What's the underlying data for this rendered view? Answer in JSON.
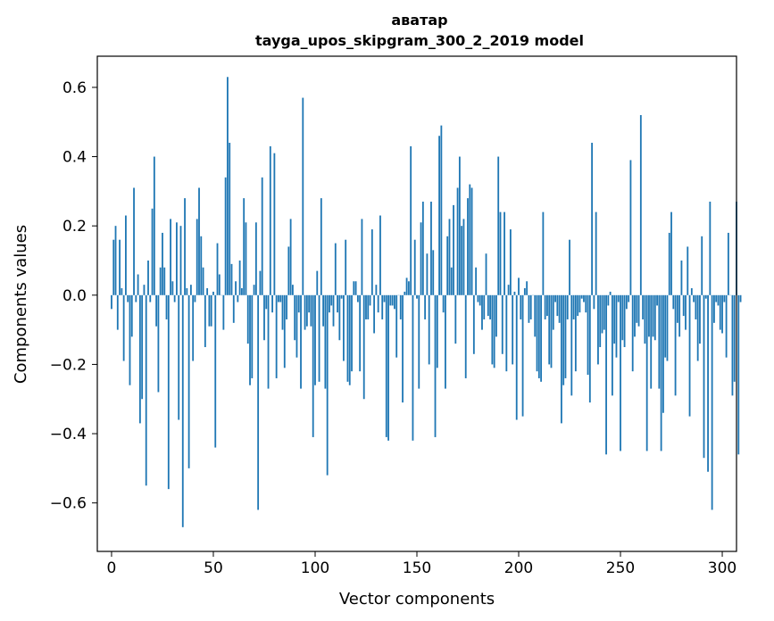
{
  "chart_data": {
    "type": "bar",
    "title": [
      "аватар",
      "tayga_upos_skipgram_300_2_2019 model"
    ],
    "xlabel": "Vector components",
    "ylabel": "Components values",
    "xlim": [
      -7,
      307
    ],
    "ylim": [
      -0.74,
      0.69
    ],
    "xticks": [
      0,
      50,
      100,
      150,
      200,
      250,
      300
    ],
    "yticks": [
      -0.6,
      -0.4,
      -0.2,
      0.0,
      0.2,
      0.4,
      0.6
    ],
    "ytick_labels": [
      "−0.6",
      "−0.4",
      "−0.2",
      "0.0",
      "0.2",
      "0.4",
      "0.6"
    ],
    "bar_color": "#1f77b4",
    "grid": false,
    "values": [
      -0.04,
      0.16,
      0.2,
      -0.1,
      0.16,
      0.02,
      -0.19,
      0.23,
      -0.02,
      -0.26,
      -0.12,
      0.31,
      -0.02,
      0.06,
      -0.37,
      -0.3,
      0.03,
      -0.55,
      0.1,
      -0.02,
      0.25,
      0.4,
      -0.09,
      -0.28,
      0.08,
      0.18,
      0.08,
      -0.07,
      -0.56,
      0.22,
      0.04,
      -0.02,
      0.21,
      -0.36,
      0.2,
      -0.67,
      0.28,
      0.02,
      -0.5,
      0.03,
      -0.19,
      -0.02,
      0.22,
      0.31,
      0.17,
      0.08,
      -0.15,
      0.02,
      -0.09,
      -0.09,
      0.01,
      -0.44,
      0.15,
      0.06,
      0.0,
      -0.1,
      0.34,
      0.63,
      0.44,
      0.09,
      -0.08,
      0.04,
      -0.02,
      0.1,
      0.02,
      0.28,
      0.21,
      -0.14,
      -0.26,
      -0.24,
      0.03,
      0.21,
      -0.62,
      0.07,
      0.34,
      -0.13,
      -0.04,
      -0.27,
      0.43,
      -0.05,
      0.41,
      -0.24,
      -0.02,
      -0.02,
      -0.1,
      -0.21,
      -0.07,
      0.14,
      0.22,
      0.03,
      -0.13,
      -0.18,
      -0.05,
      -0.27,
      0.57,
      -0.1,
      -0.09,
      -0.05,
      -0.09,
      -0.41,
      -0.26,
      0.07,
      -0.25,
      0.28,
      -0.09,
      -0.27,
      -0.52,
      -0.05,
      -0.03,
      -0.09,
      0.15,
      -0.05,
      -0.13,
      -0.01,
      -0.19,
      0.16,
      -0.25,
      -0.26,
      -0.22,
      0.04,
      0.04,
      -0.02,
      -0.22,
      0.22,
      -0.3,
      -0.07,
      -0.07,
      -0.03,
      0.19,
      -0.11,
      0.03,
      -0.05,
      0.23,
      -0.07,
      -0.02,
      -0.41,
      -0.42,
      -0.03,
      -0.03,
      -0.04,
      -0.18,
      0.0,
      -0.07,
      -0.31,
      0.01,
      0.05,
      0.04,
      0.43,
      -0.42,
      0.16,
      -0.01,
      -0.27,
      0.21,
      0.27,
      -0.07,
      0.12,
      -0.2,
      0.27,
      0.13,
      -0.41,
      -0.21,
      0.46,
      0.49,
      -0.05,
      -0.27,
      0.17,
      0.22,
      0.08,
      0.26,
      -0.14,
      0.31,
      0.4,
      0.2,
      0.22,
      -0.24,
      0.28,
      0.32,
      0.31,
      -0.17,
      0.08,
      -0.02,
      -0.03,
      -0.1,
      -0.07,
      0.12,
      -0.06,
      -0.07,
      -0.2,
      -0.21,
      -0.12,
      0.4,
      0.24,
      -0.17,
      0.24,
      -0.22,
      0.03,
      0.19,
      -0.2,
      0.01,
      -0.36,
      0.05,
      -0.07,
      -0.35,
      0.02,
      0.04,
      -0.08,
      -0.07,
      0.0,
      -0.12,
      -0.22,
      -0.24,
      -0.25,
      0.24,
      -0.07,
      -0.06,
      -0.2,
      -0.21,
      -0.1,
      -0.02,
      -0.06,
      -0.08,
      -0.37,
      -0.26,
      -0.24,
      -0.07,
      0.16,
      -0.29,
      -0.07,
      -0.22,
      -0.06,
      -0.05,
      -0.01,
      -0.02,
      -0.05,
      -0.23,
      -0.31,
      0.44,
      -0.04,
      0.24,
      -0.2,
      -0.15,
      -0.11,
      -0.1,
      -0.46,
      -0.03,
      0.01,
      -0.29,
      -0.14,
      -0.18,
      -0.02,
      -0.45,
      -0.13,
      -0.15,
      -0.04,
      -0.02,
      0.39,
      -0.22,
      -0.12,
      -0.08,
      -0.09,
      0.52,
      -0.07,
      -0.14,
      -0.45,
      -0.12,
      -0.27,
      -0.12,
      -0.13,
      -0.03,
      -0.27,
      -0.45,
      -0.34,
      -0.18,
      -0.19,
      0.18,
      0.24,
      -0.04,
      -0.29,
      -0.08,
      -0.12,
      0.1,
      -0.06,
      -0.1,
      0.14,
      -0.35,
      0.02,
      -0.02,
      -0.07,
      -0.19,
      -0.14,
      0.17,
      -0.47,
      -0.01,
      -0.51,
      0.27,
      -0.62,
      -0.08,
      -0.02,
      -0.03,
      -0.1,
      -0.11,
      -0.02,
      -0.18,
      0.18,
      0.0,
      -0.29,
      -0.25,
      0.27,
      -0.46,
      -0.02
    ]
  }
}
